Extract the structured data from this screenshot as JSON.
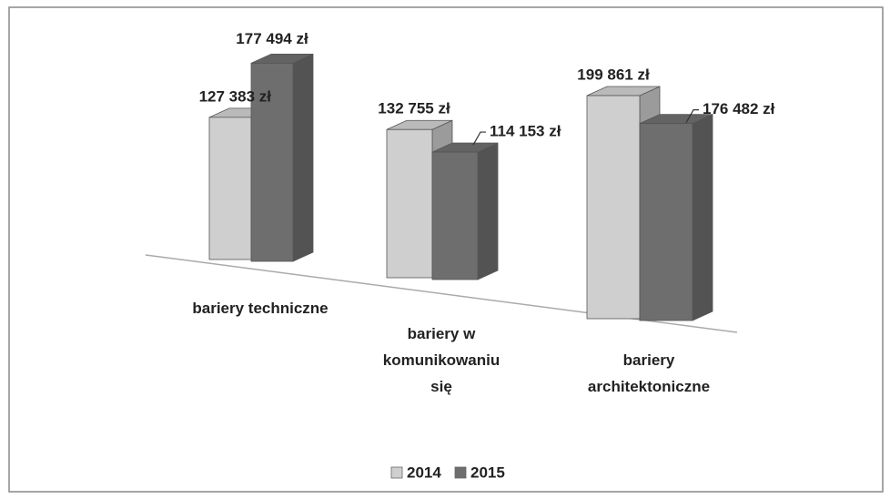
{
  "chart_data": {
    "type": "bar3d",
    "categories": [
      "bariery techniczne",
      "bariery w komunikowaniu się",
      "bariery architektoniczne"
    ],
    "series": [
      {
        "name": "2014",
        "color": "#cfcfcf",
        "values": [
          127383,
          132755,
          199861
        ],
        "value_labels": [
          "127 383 zł",
          "132 755 zł",
          "199 861 zł"
        ]
      },
      {
        "name": "2015",
        "color": "#6e6e6e",
        "values": [
          177494,
          114153,
          176482
        ],
        "value_labels": [
          "177 494 zł",
          "114 153 zł",
          "176 482 zł"
        ]
      }
    ],
    "legend": "bottom"
  }
}
